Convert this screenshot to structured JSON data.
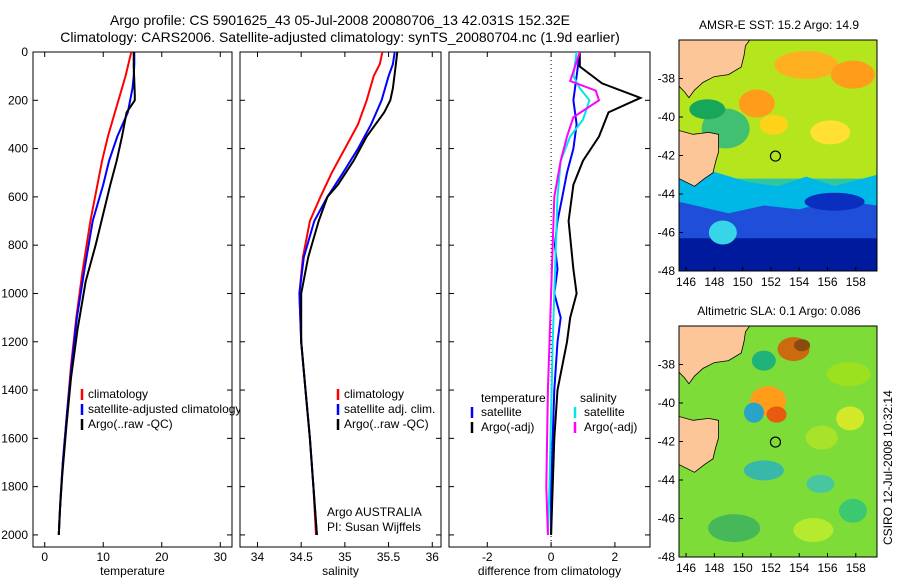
{
  "header": {
    "line1": "Argo profile: CS 5901625_43 05-Jul-2008 20080706_13 42.031S 152.32E",
    "line2": "Climatology: CARS2006. Satellite-adjusted climatology: synTS_20080704.nc (1.9d earlier)"
  },
  "credit": "CSIRO 12-Jul-2008 10:32:14",
  "colors": {
    "climatology": "#ff0000",
    "satellite": "#0000ff",
    "argo": "#000000",
    "sat_salinity": "#00e5ee",
    "argo_salinity": "#ff00ff"
  },
  "chart_data": [
    {
      "type": "line",
      "xlabel": "temperature",
      "ylabel": "",
      "xlim": [
        -2,
        32
      ],
      "ylim": [
        2050,
        0
      ],
      "xticks": [
        "0",
        "10",
        "20",
        "30"
      ],
      "xtick_values": [
        0,
        10,
        20,
        30
      ],
      "yticks": [
        "0",
        "200",
        "400",
        "600",
        "800",
        "1000",
        "1200",
        "1400",
        "1600",
        "1800",
        "2000"
      ],
      "ytick_values": [
        0,
        200,
        400,
        600,
        800,
        1000,
        1200,
        1400,
        1600,
        1800,
        2000
      ],
      "legend_placement": "lower-right",
      "series": [
        {
          "name": "climatology",
          "color": "#ff0000",
          "x": [
            14.8,
            14.3,
            13.8,
            13.2,
            12.0,
            10.8,
            9.8,
            9.0,
            7.8,
            6.5,
            5.4,
            4.5,
            3.8,
            3.1,
            2.7,
            2.5,
            2.4
          ],
          "y": [
            0,
            50,
            100,
            150,
            250,
            350,
            450,
            550,
            700,
            900,
            1100,
            1300,
            1500,
            1700,
            1850,
            1950,
            2000
          ]
        },
        {
          "name": "satellite-adjusted climatology",
          "color": "#0000ff",
          "x": [
            15.3,
            15.3,
            15.2,
            15.0,
            14.2,
            12.4,
            11.0,
            10.0,
            8.2,
            6.8,
            5.5,
            4.6,
            3.8,
            3.1,
            2.7,
            2.5,
            2.4
          ],
          "y": [
            0,
            50,
            100,
            150,
            250,
            350,
            450,
            550,
            700,
            900,
            1100,
            1300,
            1500,
            1700,
            1850,
            1950,
            2000
          ]
        },
        {
          "name": "Argo(..raw -QC)",
          "color": "#000000",
          "x": [
            15.2,
            15.2,
            15.3,
            15.4,
            15.4,
            14.0,
            13.2,
            12.3,
            11.2,
            10.2,
            8.7,
            7.0,
            5.6,
            4.5,
            3.7,
            3.0,
            2.6,
            2.4
          ],
          "y": [
            0,
            60,
            120,
            180,
            200,
            250,
            350,
            450,
            550,
            650,
            800,
            950,
            1150,
            1350,
            1550,
            1750,
            1900,
            2000
          ]
        }
      ]
    },
    {
      "type": "line",
      "xlabel": "salinity",
      "xlim": [
        33.8,
        36.1
      ],
      "ylim": [
        2050,
        0
      ],
      "xticks": [
        "34",
        "34.5",
        "35",
        "35.5",
        "36"
      ],
      "xtick_values": [
        34,
        34.5,
        35,
        35.5,
        36
      ],
      "legend_placement": "lower-right",
      "annotation": [
        "Argo AUSTRALIA",
        "PI: Susan Wijffels"
      ],
      "series": [
        {
          "name": "climatology",
          "color": "#ff0000",
          "x": [
            35.43,
            35.4,
            35.33,
            35.25,
            35.15,
            35.0,
            34.85,
            34.72,
            34.6,
            34.52,
            34.48,
            34.5,
            34.55,
            34.6,
            34.64,
            34.67
          ],
          "y": [
            0,
            50,
            100,
            200,
            300,
            400,
            500,
            600,
            700,
            850,
            1000,
            1200,
            1400,
            1600,
            1800,
            2000
          ]
        },
        {
          "name": "satellite adj. clim.",
          "color": "#0000ff",
          "x": [
            35.57,
            35.55,
            35.5,
            35.42,
            35.3,
            35.15,
            34.98,
            34.8,
            34.65,
            34.53,
            34.48,
            34.5,
            34.55,
            34.6,
            34.64,
            34.68
          ],
          "y": [
            0,
            50,
            100,
            200,
            300,
            400,
            500,
            600,
            700,
            850,
            1000,
            1200,
            1400,
            1600,
            1800,
            2000
          ]
        },
        {
          "name": "Argo(..raw -QC)",
          "color": "#000000",
          "x": [
            35.6,
            35.58,
            35.55,
            35.52,
            35.45,
            35.25,
            35.1,
            34.92,
            34.8,
            34.7,
            34.58,
            34.5,
            34.5,
            34.55,
            34.6,
            34.64,
            34.68
          ],
          "y": [
            0,
            60,
            150,
            200,
            250,
            350,
            450,
            550,
            600,
            700,
            850,
            1000,
            1200,
            1400,
            1600,
            1800,
            2000
          ]
        }
      ]
    },
    {
      "type": "line",
      "xlabel": "difference from climatology",
      "xlim": [
        -3.2,
        3.1
      ],
      "ylim": [
        2050,
        0
      ],
      "xticks": [
        "-2",
        "0",
        "2"
      ],
      "xtick_values": [
        -2,
        0,
        2
      ],
      "legend_placement": "lower-center",
      "legend_headers": [
        "temperature",
        "salinity"
      ],
      "series": [
        {
          "name": "satellite",
          "group": "temperature",
          "color": "#0000ff",
          "x": [
            0.9,
            0.8,
            0.7,
            0.8,
            0.7,
            0.5,
            0.35,
            0.2,
            0.12,
            0.2,
            0.1,
            0.3,
            0.2,
            0.1,
            0.05,
            0.0,
            0.0
          ],
          "y": [
            0,
            100,
            200,
            300,
            400,
            500,
            600,
            700,
            800,
            900,
            1000,
            1100,
            1200,
            1400,
            1600,
            1800,
            2000
          ]
        },
        {
          "name": "Argo(-adj)",
          "group": "temperature",
          "color": "#000000",
          "x": [
            0.9,
            0.9,
            1.6,
            2.8,
            1.8,
            1.5,
            1.0,
            0.7,
            0.55,
            0.7,
            0.8,
            0.6,
            0.5,
            0.2,
            0.1,
            0.05,
            0.0
          ],
          "y": [
            0,
            60,
            130,
            190,
            250,
            350,
            450,
            550,
            700,
            900,
            1000,
            1100,
            1200,
            1400,
            1600,
            1800,
            2000
          ]
        },
        {
          "name": "satellite",
          "group": "salinity",
          "color": "#00e5ee",
          "x": [
            0.8,
            0.7,
            0.9,
            1.2,
            1.0,
            0.6,
            0.3,
            0.2,
            0.15,
            0.1,
            0.05,
            0.0,
            -0.05,
            -0.1
          ],
          "y": [
            0,
            100,
            150,
            200,
            280,
            350,
            450,
            600,
            800,
            1000,
            1200,
            1500,
            1800,
            2000
          ]
        },
        {
          "name": "Argo(-adj)",
          "group": "salinity",
          "color": "#ff00ff",
          "x": [
            0.9,
            0.6,
            1.4,
            1.5,
            0.7,
            0.5,
            0.3,
            0.1,
            0.0,
            -0.1,
            -0.15,
            -0.1
          ],
          "y": [
            0,
            120,
            160,
            200,
            270,
            350,
            450,
            600,
            1000,
            1400,
            1800,
            2000
          ]
        }
      ]
    },
    {
      "type": "heatmap",
      "title": "AMSR-E SST: 15.2  Argo: 14.9",
      "xticks": [
        "146",
        "148",
        "150",
        "152",
        "154",
        "156",
        "158"
      ],
      "xtick_values": [
        146,
        148,
        150,
        152,
        154,
        156,
        158
      ],
      "yticks": [
        "-38",
        "-40",
        "-42",
        "-44",
        "-46",
        "-48"
      ],
      "ytick_values": [
        -38,
        -40,
        -42,
        -44,
        -46,
        -48
      ],
      "xlim": [
        145.5,
        159.5
      ],
      "ylim": [
        -48,
        -36
      ],
      "marker": {
        "lon": 152.32,
        "lat": -42.03
      }
    },
    {
      "type": "heatmap",
      "title": "Altimetric SLA: 0.1  Argo: 0.086",
      "xticks": [
        "146",
        "148",
        "150",
        "152",
        "154",
        "156",
        "158"
      ],
      "xtick_values": [
        146,
        148,
        150,
        152,
        154,
        156,
        158
      ],
      "yticks": [
        "-38",
        "-40",
        "-42",
        "-44",
        "-46",
        "-48"
      ],
      "ytick_values": [
        -38,
        -40,
        -42,
        -44,
        -46,
        -48
      ],
      "xlim": [
        145.5,
        159.5
      ],
      "ylim": [
        -48,
        -36
      ],
      "marker": {
        "lon": 152.32,
        "lat": -42.03
      }
    }
  ]
}
